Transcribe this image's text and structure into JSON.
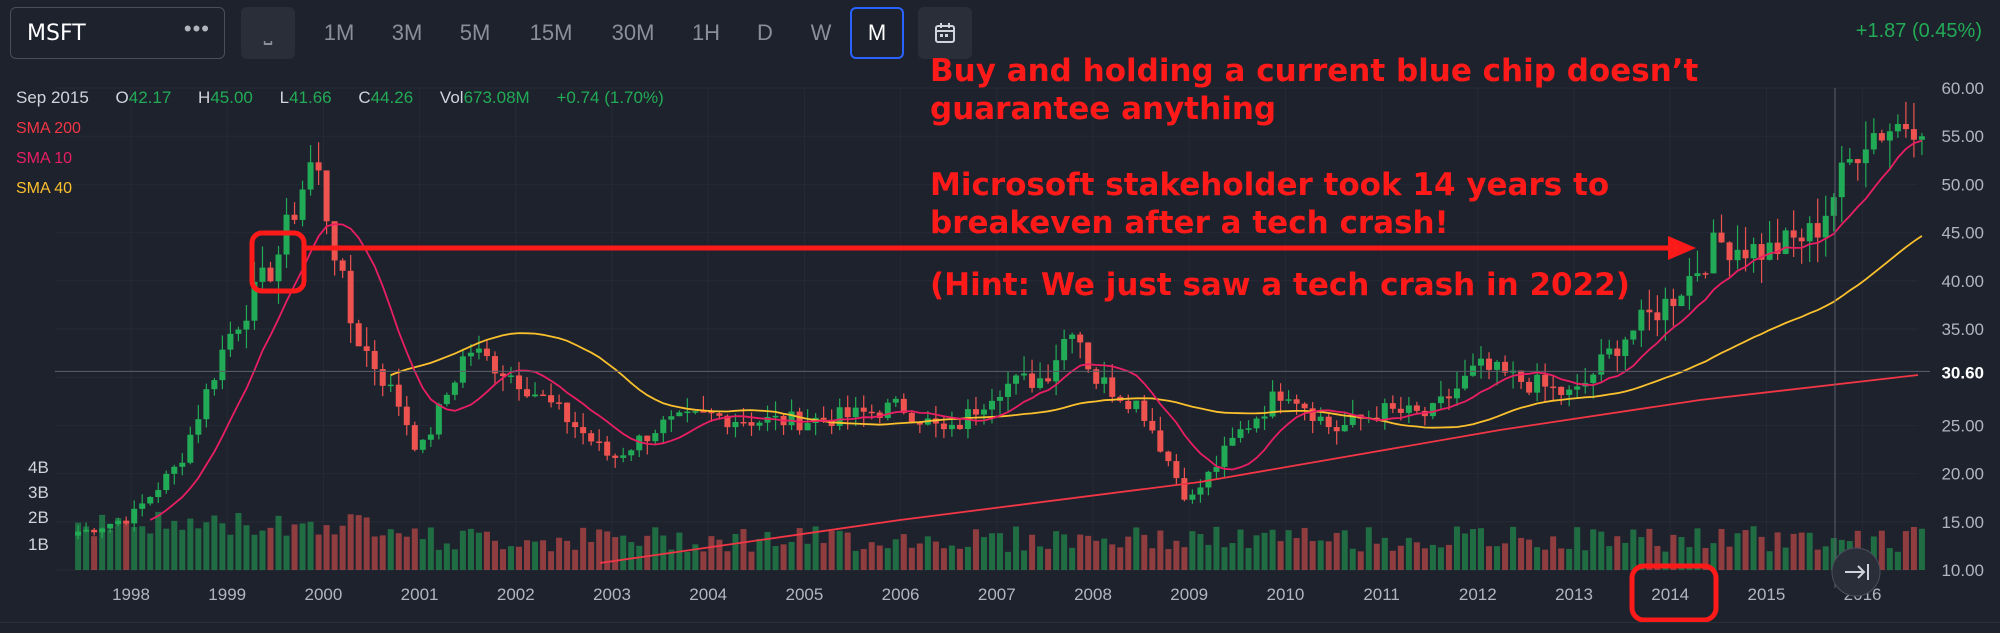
{
  "toolbar": {
    "symbol": "MSFT",
    "more": "•••",
    "interval_glyph": "⎵",
    "intervals": [
      "1M",
      "3M",
      "5M",
      "15M",
      "30M",
      "1H",
      "D",
      "W",
      "M"
    ],
    "active_interval": "M",
    "calendar_icon": "calendar-icon",
    "change": "+1.87 (0.45%)"
  },
  "ohlc": {
    "date": "Sep 2015",
    "o_label": "O",
    "o": "42.17",
    "h_label": "H",
    "h": "45.00",
    "l_label": "L",
    "l": "41.66",
    "c_label": "C",
    "c": "44.26",
    "vol_label": "Vol",
    "vol": "673.08M",
    "change": "+0.74 (1.70%)"
  },
  "legend": [
    {
      "name": "SMA 200",
      "color": "#f23645"
    },
    {
      "name": "SMA 10",
      "color": "#e91e63"
    },
    {
      "name": "SMA 40",
      "color": "#fbc02d"
    }
  ],
  "annotation": {
    "line1": "Buy and holding a current blue chip doesn’t",
    "line2": "guarantee anything",
    "line3": "Microsoft stakeholder took 14 years to",
    "line4": "breakeven after a tech crash!",
    "line5": "(Hint: We just saw a tech crash in 2022)"
  },
  "colors": {
    "up": "#22ab56",
    "down": "#ef5350",
    "annotation": "#ff1a1a",
    "background": "#1e222d"
  },
  "chart_data": {
    "type": "candlestick",
    "ylim": [
      10,
      60
    ],
    "y_ticks": [
      "60.00",
      "55.00",
      "50.00",
      "45.00",
      "40.00",
      "35.00",
      "30.00",
      "25.00",
      "20.00",
      "15.00",
      "10.00"
    ],
    "x_ticks": [
      "1998",
      "1999",
      "2000",
      "2001",
      "2002",
      "2003",
      "2004",
      "2005",
      "2006",
      "2007",
      "2008",
      "2009",
      "2010",
      "2011",
      "2012",
      "2013",
      "2014",
      "2015",
      "2016"
    ],
    "last_price": "30.60",
    "volume_ticks": [
      "4B",
      "3B",
      "2B",
      "1B"
    ],
    "highlight_year": "2014",
    "monthly_close": [
      {
        "year": 1997.5,
        "close": 14.0
      },
      {
        "year": 1998.0,
        "close": 15.5
      },
      {
        "year": 1998.5,
        "close": 21.0
      },
      {
        "year": 1999.0,
        "close": 34.0
      },
      {
        "year": 1999.5,
        "close": 42.0
      },
      {
        "year": 1999.9,
        "close": 53.0
      },
      {
        "year": 2000.3,
        "close": 35.0
      },
      {
        "year": 2000.8,
        "close": 27.0
      },
      {
        "year": 2001.0,
        "close": 22.0
      },
      {
        "year": 2001.5,
        "close": 33.0
      },
      {
        "year": 2002.0,
        "close": 30.0
      },
      {
        "year": 2002.5,
        "close": 26.0
      },
      {
        "year": 2003.0,
        "close": 21.5
      },
      {
        "year": 2003.5,
        "close": 25.0
      },
      {
        "year": 2004.0,
        "close": 26.0
      },
      {
        "year": 2004.5,
        "close": 25.5
      },
      {
        "year": 2005.0,
        "close": 25.5
      },
      {
        "year": 2005.5,
        "close": 26.0
      },
      {
        "year": 2006.0,
        "close": 27.0
      },
      {
        "year": 2006.5,
        "close": 24.0
      },
      {
        "year": 2007.0,
        "close": 29.0
      },
      {
        "year": 2007.5,
        "close": 30.0
      },
      {
        "year": 2007.8,
        "close": 36.0
      },
      {
        "year": 2008.0,
        "close": 30.0
      },
      {
        "year": 2008.5,
        "close": 27.0
      },
      {
        "year": 2009.0,
        "close": 17.0
      },
      {
        "year": 2009.5,
        "close": 24.0
      },
      {
        "year": 2010.0,
        "close": 29.0
      },
      {
        "year": 2010.5,
        "close": 24.5
      },
      {
        "year": 2011.0,
        "close": 26.5
      },
      {
        "year": 2011.5,
        "close": 26.0
      },
      {
        "year": 2012.0,
        "close": 31.0
      },
      {
        "year": 2012.5,
        "close": 29.5
      },
      {
        "year": 2013.0,
        "close": 28.0
      },
      {
        "year": 2013.5,
        "close": 34.0
      },
      {
        "year": 2014.0,
        "close": 38.0
      },
      {
        "year": 2014.5,
        "close": 44.0
      },
      {
        "year": 2015.0,
        "close": 43.0
      },
      {
        "year": 2015.5,
        "close": 45.0
      },
      {
        "year": 2016.0,
        "close": 55.0
      },
      {
        "year": 2016.6,
        "close": 57.0
      }
    ]
  }
}
